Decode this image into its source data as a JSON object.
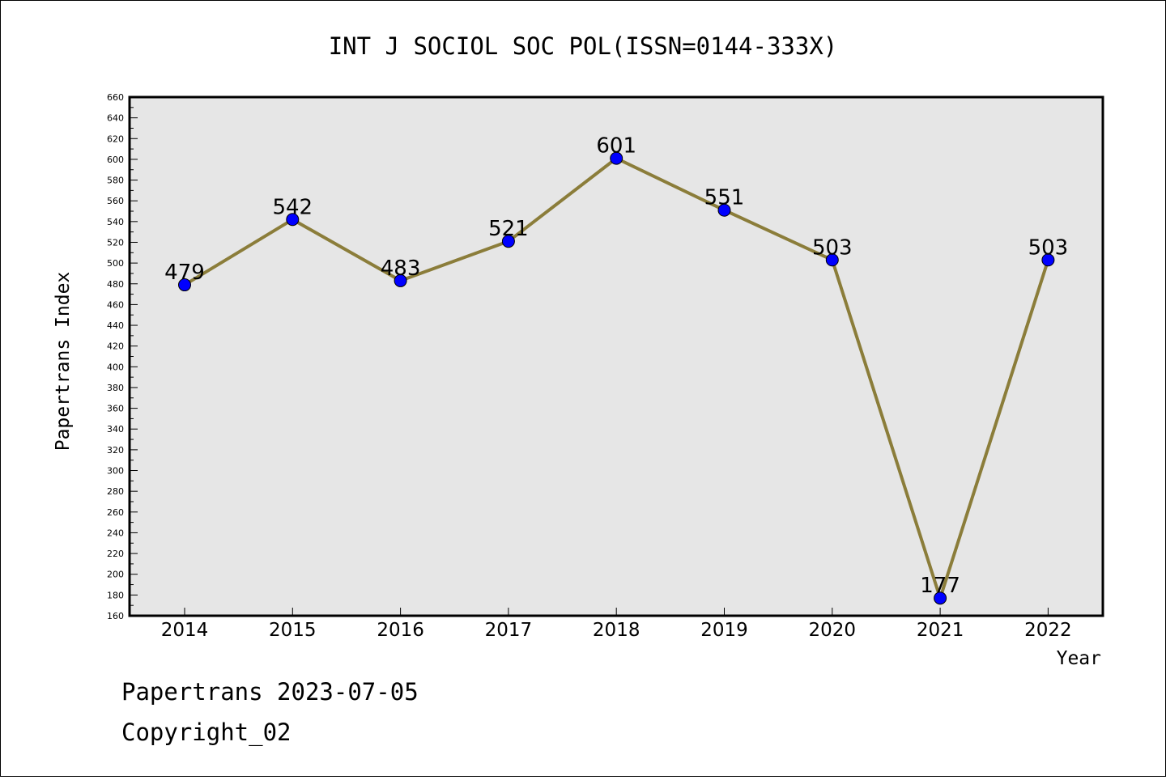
{
  "footer": {
    "line1": "Papertrans 2023-07-05",
    "line2": "Copyright_02"
  },
  "chart_data": {
    "type": "line",
    "title": "INT J SOCIOL SOC POL(ISSN=0144-333X)",
    "xlabel": "Year",
    "ylabel": "Papertrans Index",
    "categories": [
      "2014",
      "2015",
      "2016",
      "2017",
      "2018",
      "2019",
      "2020",
      "2021",
      "2022"
    ],
    "series": [
      {
        "values": [
          479,
          542,
          483,
          521,
          601,
          551,
          503,
          177,
          503
        ]
      }
    ],
    "ylim": [
      160,
      660
    ],
    "ytick_step": 20,
    "ytick_labels": [
      "160",
      "180",
      "200",
      "220",
      "240",
      "260",
      "280",
      "300",
      "320",
      "340",
      "360",
      "380",
      "400",
      "420",
      "440",
      "460",
      "480",
      "500",
      "520",
      "540",
      "560",
      "580",
      "600",
      "620",
      "640",
      "660"
    ],
    "data_labels": [
      "479",
      "542",
      "483",
      "521",
      "601",
      "551",
      "503",
      "177",
      "503"
    ],
    "grid": false,
    "legend": "none",
    "colors": {
      "line": "#8B7D3A",
      "marker": "#0000FF",
      "plot_background": "#E6E6E6",
      "axis": "#000000"
    }
  }
}
